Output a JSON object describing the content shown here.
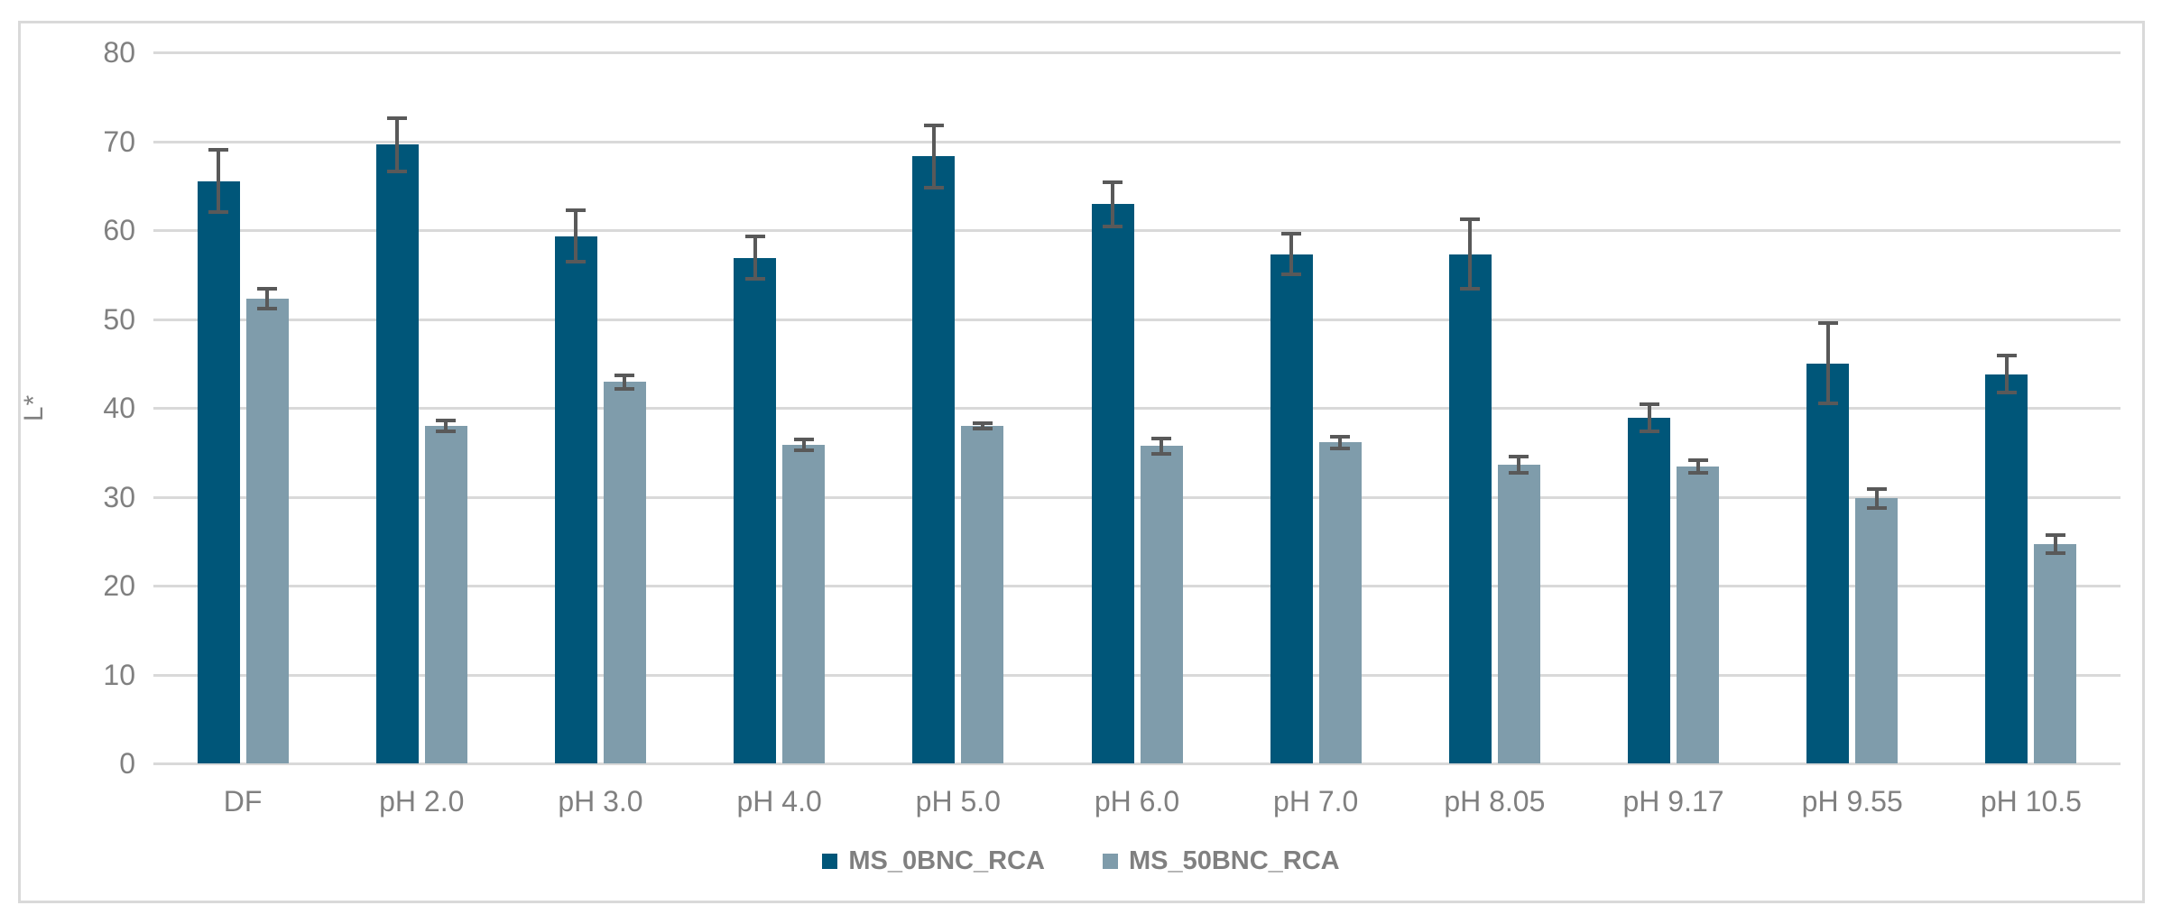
{
  "chart_data": {
    "type": "bar",
    "title": "",
    "xlabel": "",
    "ylabel": "L*",
    "ylim": [
      0,
      80
    ],
    "yticks": [
      0,
      10,
      20,
      30,
      40,
      50,
      60,
      70,
      80
    ],
    "grid": "horizontal-gridlines-on",
    "legend_position": "bottom-center",
    "categories": [
      "DF",
      "pH 2.0",
      "pH 3.0",
      "pH 4.0",
      "pH 5.0",
      "pH 6.0",
      "pH 7.0",
      "pH 8.05",
      "pH 9.17",
      "pH 9.55",
      "pH 10.5"
    ],
    "series": [
      {
        "name": "MS_0BNC_RCA",
        "color": "#005679",
        "values": [
          65.5,
          69.6,
          59.3,
          56.9,
          68.3,
          62.9,
          57.3,
          57.3,
          38.9,
          45.0,
          43.8
        ],
        "error_bars": [
          3.7,
          3.2,
          3.1,
          2.6,
          3.7,
          2.7,
          2.5,
          4.1,
          1.7,
          4.7,
          2.3
        ]
      },
      {
        "name": "MS_50BNC_RCA",
        "color": "#7f9cab",
        "values": [
          52.3,
          38.0,
          42.9,
          35.8,
          38.0,
          35.7,
          36.1,
          33.6,
          33.4,
          29.8,
          24.7
        ],
        "error_bars": [
          1.3,
          0.8,
          1.0,
          0.8,
          0.5,
          1.1,
          0.9,
          1.1,
          0.9,
          1.3,
          1.2
        ]
      }
    ],
    "colors": {
      "error_bar": "#595959",
      "gridline": "#d9d9d9",
      "axis_text": "#808080",
      "frame_border": "#d9d9d9",
      "background": "#ffffff"
    }
  }
}
